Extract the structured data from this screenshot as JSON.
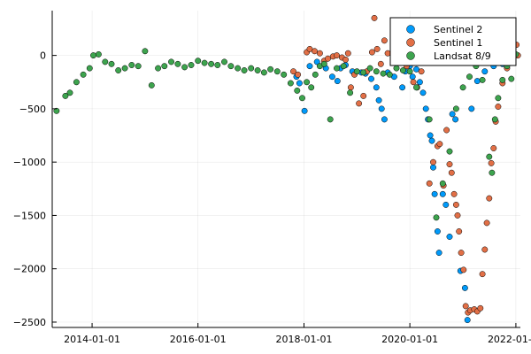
{
  "chart_data": {
    "type": "scatter",
    "title": "",
    "xlabel": "",
    "ylabel": "",
    "x_axis": "date",
    "xlim": [
      "2013-04-01",
      "2022-02-01"
    ],
    "ylim": [
      -2550,
      420
    ],
    "x_ticks": [
      "2014-01-01",
      "2016-01-01",
      "2018-01-01",
      "2020-01-01",
      "2022-01-01"
    ],
    "y_ticks": [
      0,
      -500,
      -1000,
      -1500,
      -2000,
      -2500
    ],
    "grid": true,
    "legend_position": "top-right",
    "series": [
      {
        "name": "Sentinel 2",
        "color": "#009AFA",
        "points": [
          [
            "2017-11-10",
            -200
          ],
          [
            "2017-12-01",
            -260
          ],
          [
            "2018-01-05",
            -520
          ],
          [
            "2018-02-10",
            -100
          ],
          [
            "2018-04-01",
            -60
          ],
          [
            "2018-06-01",
            -120
          ],
          [
            "2018-07-15",
            -200
          ],
          [
            "2018-08-20",
            -240
          ],
          [
            "2018-09-10",
            -120
          ],
          [
            "2018-10-15",
            -90
          ],
          [
            "2018-12-01",
            -150
          ],
          [
            "2019-02-01",
            -160
          ],
          [
            "2019-03-01",
            -170
          ],
          [
            "2019-04-10",
            -220
          ],
          [
            "2019-05-15",
            -300
          ],
          [
            "2019-06-01",
            -420
          ],
          [
            "2019-06-20",
            -500
          ],
          [
            "2019-07-10",
            -600
          ],
          [
            "2019-08-01",
            -160
          ],
          [
            "2019-09-15",
            -200
          ],
          [
            "2019-10-20",
            80
          ],
          [
            "2019-11-10",
            -300
          ],
          [
            "2019-12-01",
            -150
          ],
          [
            "2020-01-01",
            -100
          ],
          [
            "2020-01-20",
            -200
          ],
          [
            "2020-02-15",
            -130
          ],
          [
            "2020-03-10",
            -250
          ],
          [
            "2020-04-01",
            -350
          ],
          [
            "2020-04-20",
            -500
          ],
          [
            "2020-05-05",
            -600
          ],
          [
            "2020-05-20",
            -750
          ],
          [
            "2020-06-01",
            -800
          ],
          [
            "2020-06-10",
            -1050
          ],
          [
            "2020-06-20",
            -1300
          ],
          [
            "2020-07-10",
            -1650
          ],
          [
            "2020-07-20",
            -1850
          ],
          [
            "2020-08-15",
            -1300
          ],
          [
            "2020-09-05",
            -1400
          ],
          [
            "2020-10-01",
            -1700
          ],
          [
            "2020-10-20",
            -550
          ],
          [
            "2020-11-10",
            -600
          ],
          [
            "2020-12-15",
            -2020
          ],
          [
            "2021-01-15",
            -2180
          ],
          [
            "2021-02-01",
            -2480
          ],
          [
            "2021-03-01",
            -500
          ],
          [
            "2021-04-10",
            -240
          ],
          [
            "2021-06-01",
            -150
          ],
          [
            "2021-08-01",
            -100
          ],
          [
            "2021-10-01",
            -80
          ],
          [
            "2021-12-01",
            -60
          ]
        ]
      },
      {
        "name": "Sentinel 1",
        "color": "#E26F46",
        "points": [
          [
            "2017-10-20",
            -150
          ],
          [
            "2017-11-20",
            -180
          ],
          [
            "2018-01-20",
            30
          ],
          [
            "2018-02-10",
            60
          ],
          [
            "2018-03-15",
            40
          ],
          [
            "2018-04-20",
            20
          ],
          [
            "2018-05-20",
            -50
          ],
          [
            "2018-06-15",
            -30
          ],
          [
            "2018-07-20",
            -10
          ],
          [
            "2018-08-15",
            0
          ],
          [
            "2018-09-20",
            -20
          ],
          [
            "2018-10-15",
            -40
          ],
          [
            "2018-11-01",
            20
          ],
          [
            "2018-11-20",
            -300
          ],
          [
            "2018-12-15",
            -180
          ],
          [
            "2019-01-15",
            -450
          ],
          [
            "2019-02-15",
            -380
          ],
          [
            "2019-03-10",
            -150
          ],
          [
            "2019-04-15",
            30
          ],
          [
            "2019-05-01",
            350
          ],
          [
            "2019-05-20",
            60
          ],
          [
            "2019-06-15",
            -80
          ],
          [
            "2019-07-10",
            140
          ],
          [
            "2019-08-01",
            20
          ],
          [
            "2019-09-10",
            -50
          ],
          [
            "2019-10-15",
            -30
          ],
          [
            "2019-11-15",
            -20
          ],
          [
            "2019-12-10",
            -100
          ],
          [
            "2020-01-01",
            30
          ],
          [
            "2020-01-25",
            -250
          ],
          [
            "2020-02-20",
            -300
          ],
          [
            "2020-03-20",
            -150
          ],
          [
            "2020-05-15",
            -1200
          ],
          [
            "2020-06-10",
            -1000
          ],
          [
            "2020-07-10",
            -850
          ],
          [
            "2020-07-25",
            -830
          ],
          [
            "2020-08-20",
            -1220
          ],
          [
            "2020-09-10",
            -700
          ],
          [
            "2020-10-01",
            -1020
          ],
          [
            "2020-10-15",
            -1100
          ],
          [
            "2020-11-01",
            -1300
          ],
          [
            "2020-11-15",
            -1400
          ],
          [
            "2020-11-25",
            -1500
          ],
          [
            "2020-12-05",
            -1650
          ],
          [
            "2020-12-20",
            -1850
          ],
          [
            "2021-01-05",
            -2010
          ],
          [
            "2021-01-20",
            -2350
          ],
          [
            "2021-02-05",
            -2410
          ],
          [
            "2021-02-20",
            -2390
          ],
          [
            "2021-03-20",
            -2380
          ],
          [
            "2021-04-10",
            -2400
          ],
          [
            "2021-05-01",
            -2370
          ],
          [
            "2021-05-15",
            -2050
          ],
          [
            "2021-06-01",
            -1820
          ],
          [
            "2021-06-15",
            -1570
          ],
          [
            "2021-07-01",
            -1340
          ],
          [
            "2021-07-15",
            -1010
          ],
          [
            "2021-08-01",
            -870
          ],
          [
            "2021-08-15",
            -620
          ],
          [
            "2021-09-01",
            -480
          ],
          [
            "2021-10-01",
            -260
          ],
          [
            "2021-11-01",
            -120
          ],
          [
            "2021-11-20",
            -40
          ],
          [
            "2021-12-10",
            20
          ],
          [
            "2022-01-05",
            100
          ],
          [
            "2022-01-15",
            0
          ]
        ]
      },
      {
        "name": "Landsat 8/9",
        "color": "#3DA44E",
        "points": [
          [
            "2013-05-01",
            -520
          ],
          [
            "2013-07-01",
            -380
          ],
          [
            "2013-08-01",
            -350
          ],
          [
            "2013-09-15",
            -250
          ],
          [
            "2013-11-01",
            -180
          ],
          [
            "2013-12-15",
            -120
          ],
          [
            "2014-01-10",
            0
          ],
          [
            "2014-02-15",
            10
          ],
          [
            "2014-04-01",
            -60
          ],
          [
            "2014-05-15",
            -80
          ],
          [
            "2014-07-01",
            -140
          ],
          [
            "2014-08-15",
            -120
          ],
          [
            "2014-10-01",
            -90
          ],
          [
            "2014-11-15",
            -100
          ],
          [
            "2015-01-01",
            40
          ],
          [
            "2015-02-15",
            -280
          ],
          [
            "2015-04-01",
            -120
          ],
          [
            "2015-05-15",
            -100
          ],
          [
            "2015-07-01",
            -60
          ],
          [
            "2015-08-15",
            -80
          ],
          [
            "2015-10-01",
            -110
          ],
          [
            "2015-11-15",
            -90
          ],
          [
            "2016-01-01",
            -50
          ],
          [
            "2016-02-15",
            -70
          ],
          [
            "2016-04-01",
            -80
          ],
          [
            "2016-05-15",
            -90
          ],
          [
            "2016-07-01",
            -60
          ],
          [
            "2016-08-15",
            -100
          ],
          [
            "2016-10-01",
            -120
          ],
          [
            "2016-11-15",
            -140
          ],
          [
            "2017-01-01",
            -120
          ],
          [
            "2017-02-15",
            -140
          ],
          [
            "2017-04-01",
            -160
          ],
          [
            "2017-05-15",
            -130
          ],
          [
            "2017-07-01",
            -150
          ],
          [
            "2017-08-15",
            -180
          ],
          [
            "2017-10-01",
            -260
          ],
          [
            "2017-11-15",
            -330
          ],
          [
            "2017-12-20",
            -400
          ],
          [
            "2018-01-20",
            -250
          ],
          [
            "2018-02-20",
            -300
          ],
          [
            "2018-03-20",
            -180
          ],
          [
            "2018-04-20",
            -100
          ],
          [
            "2018-05-20",
            -80
          ],
          [
            "2018-07-01",
            -600
          ],
          [
            "2018-08-15",
            -120
          ],
          [
            "2018-10-01",
            -100
          ],
          [
            "2018-11-15",
            -350
          ],
          [
            "2019-01-01",
            -150
          ],
          [
            "2019-02-15",
            -160
          ],
          [
            "2019-04-01",
            -120
          ],
          [
            "2019-05-15",
            -150
          ],
          [
            "2019-07-01",
            -170
          ],
          [
            "2019-08-15",
            -180
          ],
          [
            "2019-10-01",
            -120
          ],
          [
            "2019-11-15",
            -140
          ],
          [
            "2020-01-01",
            -150
          ],
          [
            "2020-02-15",
            -300
          ],
          [
            "2020-04-01",
            -50
          ],
          [
            "2020-05-15",
            -600
          ],
          [
            "2020-07-01",
            -1520
          ],
          [
            "2020-08-15",
            -1200
          ],
          [
            "2020-10-01",
            -900
          ],
          [
            "2020-11-15",
            -500
          ],
          [
            "2021-01-01",
            -300
          ],
          [
            "2021-02-15",
            -200
          ],
          [
            "2021-04-01",
            -100
          ],
          [
            "2021-05-15",
            -230
          ],
          [
            "2021-07-01",
            -950
          ],
          [
            "2021-07-20",
            -1100
          ],
          [
            "2021-08-10",
            -600
          ],
          [
            "2021-09-01",
            -400
          ],
          [
            "2021-10-01",
            -230
          ],
          [
            "2021-11-01",
            -100
          ],
          [
            "2021-12-01",
            -220
          ],
          [
            "2022-01-01",
            10
          ]
        ]
      }
    ]
  }
}
